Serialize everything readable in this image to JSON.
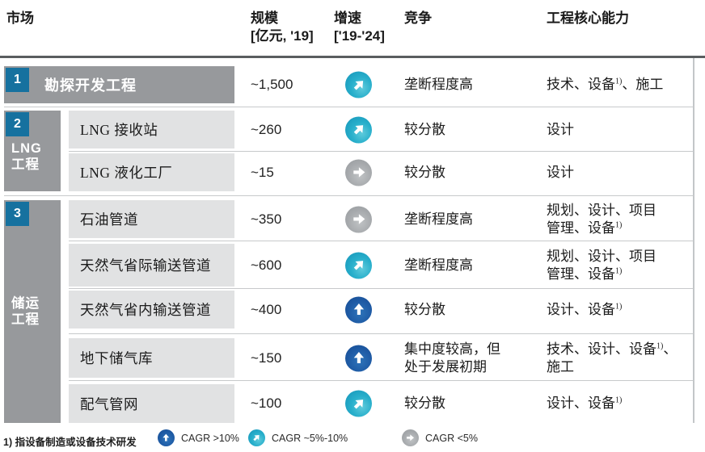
{
  "header": {
    "market": "市场",
    "scale_line1": "规模",
    "scale_line2": "[亿元, '19]",
    "growth_line1": "增速",
    "growth_line2": "['19-'24]",
    "competition": "竞争",
    "capability": "工程核心能力"
  },
  "sections": {
    "s1": {
      "num": "1"
    },
    "s2": {
      "num": "2",
      "label_line1": "LNG",
      "label_line2": "工程"
    },
    "s3": {
      "num": "3",
      "label_line1": "储运",
      "label_line2": "工程"
    }
  },
  "rows": [
    {
      "label": "勘探开发工程",
      "scale": "~1,500",
      "growth": "diag",
      "competition": [
        {
          "t": "垄断程度高"
        }
      ],
      "capability": [
        {
          "t": "技术、设备"
        },
        {
          "t": "1)",
          "sup": true
        },
        {
          "t": "、施工"
        }
      ]
    },
    {
      "label": "LNG 接收站",
      "scale": "~260",
      "growth": "diag",
      "competition": [
        {
          "t": "较分散"
        }
      ],
      "capability": [
        {
          "t": "设计"
        }
      ]
    },
    {
      "label": "LNG 液化工厂",
      "scale": "~15",
      "growth": "flat",
      "competition": [
        {
          "t": "较分散"
        }
      ],
      "capability": [
        {
          "t": "设计"
        }
      ]
    },
    {
      "label": "石油管道",
      "scale": "~350",
      "growth": "flat",
      "competition": [
        {
          "t": "垄断程度高"
        }
      ],
      "capability": [
        {
          "t": "规划、设计、项目"
        },
        {
          "br": true
        },
        {
          "t": "管理、设备"
        },
        {
          "t": "1)",
          "sup": true
        }
      ]
    },
    {
      "label": "天然气省际输送管道",
      "scale": "~600",
      "growth": "diag",
      "competition": [
        {
          "t": "垄断程度高"
        }
      ],
      "capability": [
        {
          "t": "规划、设计、项目"
        },
        {
          "br": true
        },
        {
          "t": "管理、设备"
        },
        {
          "t": "1)",
          "sup": true
        }
      ]
    },
    {
      "label": "天然气省内输送管道",
      "scale": "~400",
      "growth": "up",
      "competition": [
        {
          "t": "较分散"
        }
      ],
      "capability": [
        {
          "t": "设计、设备"
        },
        {
          "t": "1)",
          "sup": true
        }
      ]
    },
    {
      "label": "地下储气库",
      "scale": "~150",
      "growth": "up",
      "competition": [
        {
          "t": "集中度较高，但"
        },
        {
          "br": true
        },
        {
          "t": "处于发展初期"
        }
      ],
      "capability": [
        {
          "t": "技术、设计、设备"
        },
        {
          "t": "1)",
          "sup": true
        },
        {
          "t": "、"
        },
        {
          "br": true
        },
        {
          "t": "施工"
        }
      ]
    },
    {
      "label": "配气管网",
      "scale": "~100",
      "growth": "diag",
      "competition": [
        {
          "t": "较分散"
        }
      ],
      "capability": [
        {
          "t": "设计、设备"
        },
        {
          "t": "1)",
          "sup": true
        }
      ]
    }
  ],
  "footer": {
    "footnote": "1) 指设备制造或设备技术研发",
    "legend": [
      {
        "growth": "up",
        "label": "CAGR >10%"
      },
      {
        "growth": "diag",
        "label": "CAGR ~5%-10%"
      },
      {
        "growth": "flat",
        "label": "CAGR <5%"
      }
    ]
  },
  "colors": {
    "accent_blue": "#16719f",
    "band_gray": "#97999c",
    "row_light_gray": "#e1e2e3",
    "arrow_cyan": "#28afcb",
    "arrow_dark_blue": "#1e5aa4",
    "arrow_gray": "#a6a9ac"
  }
}
